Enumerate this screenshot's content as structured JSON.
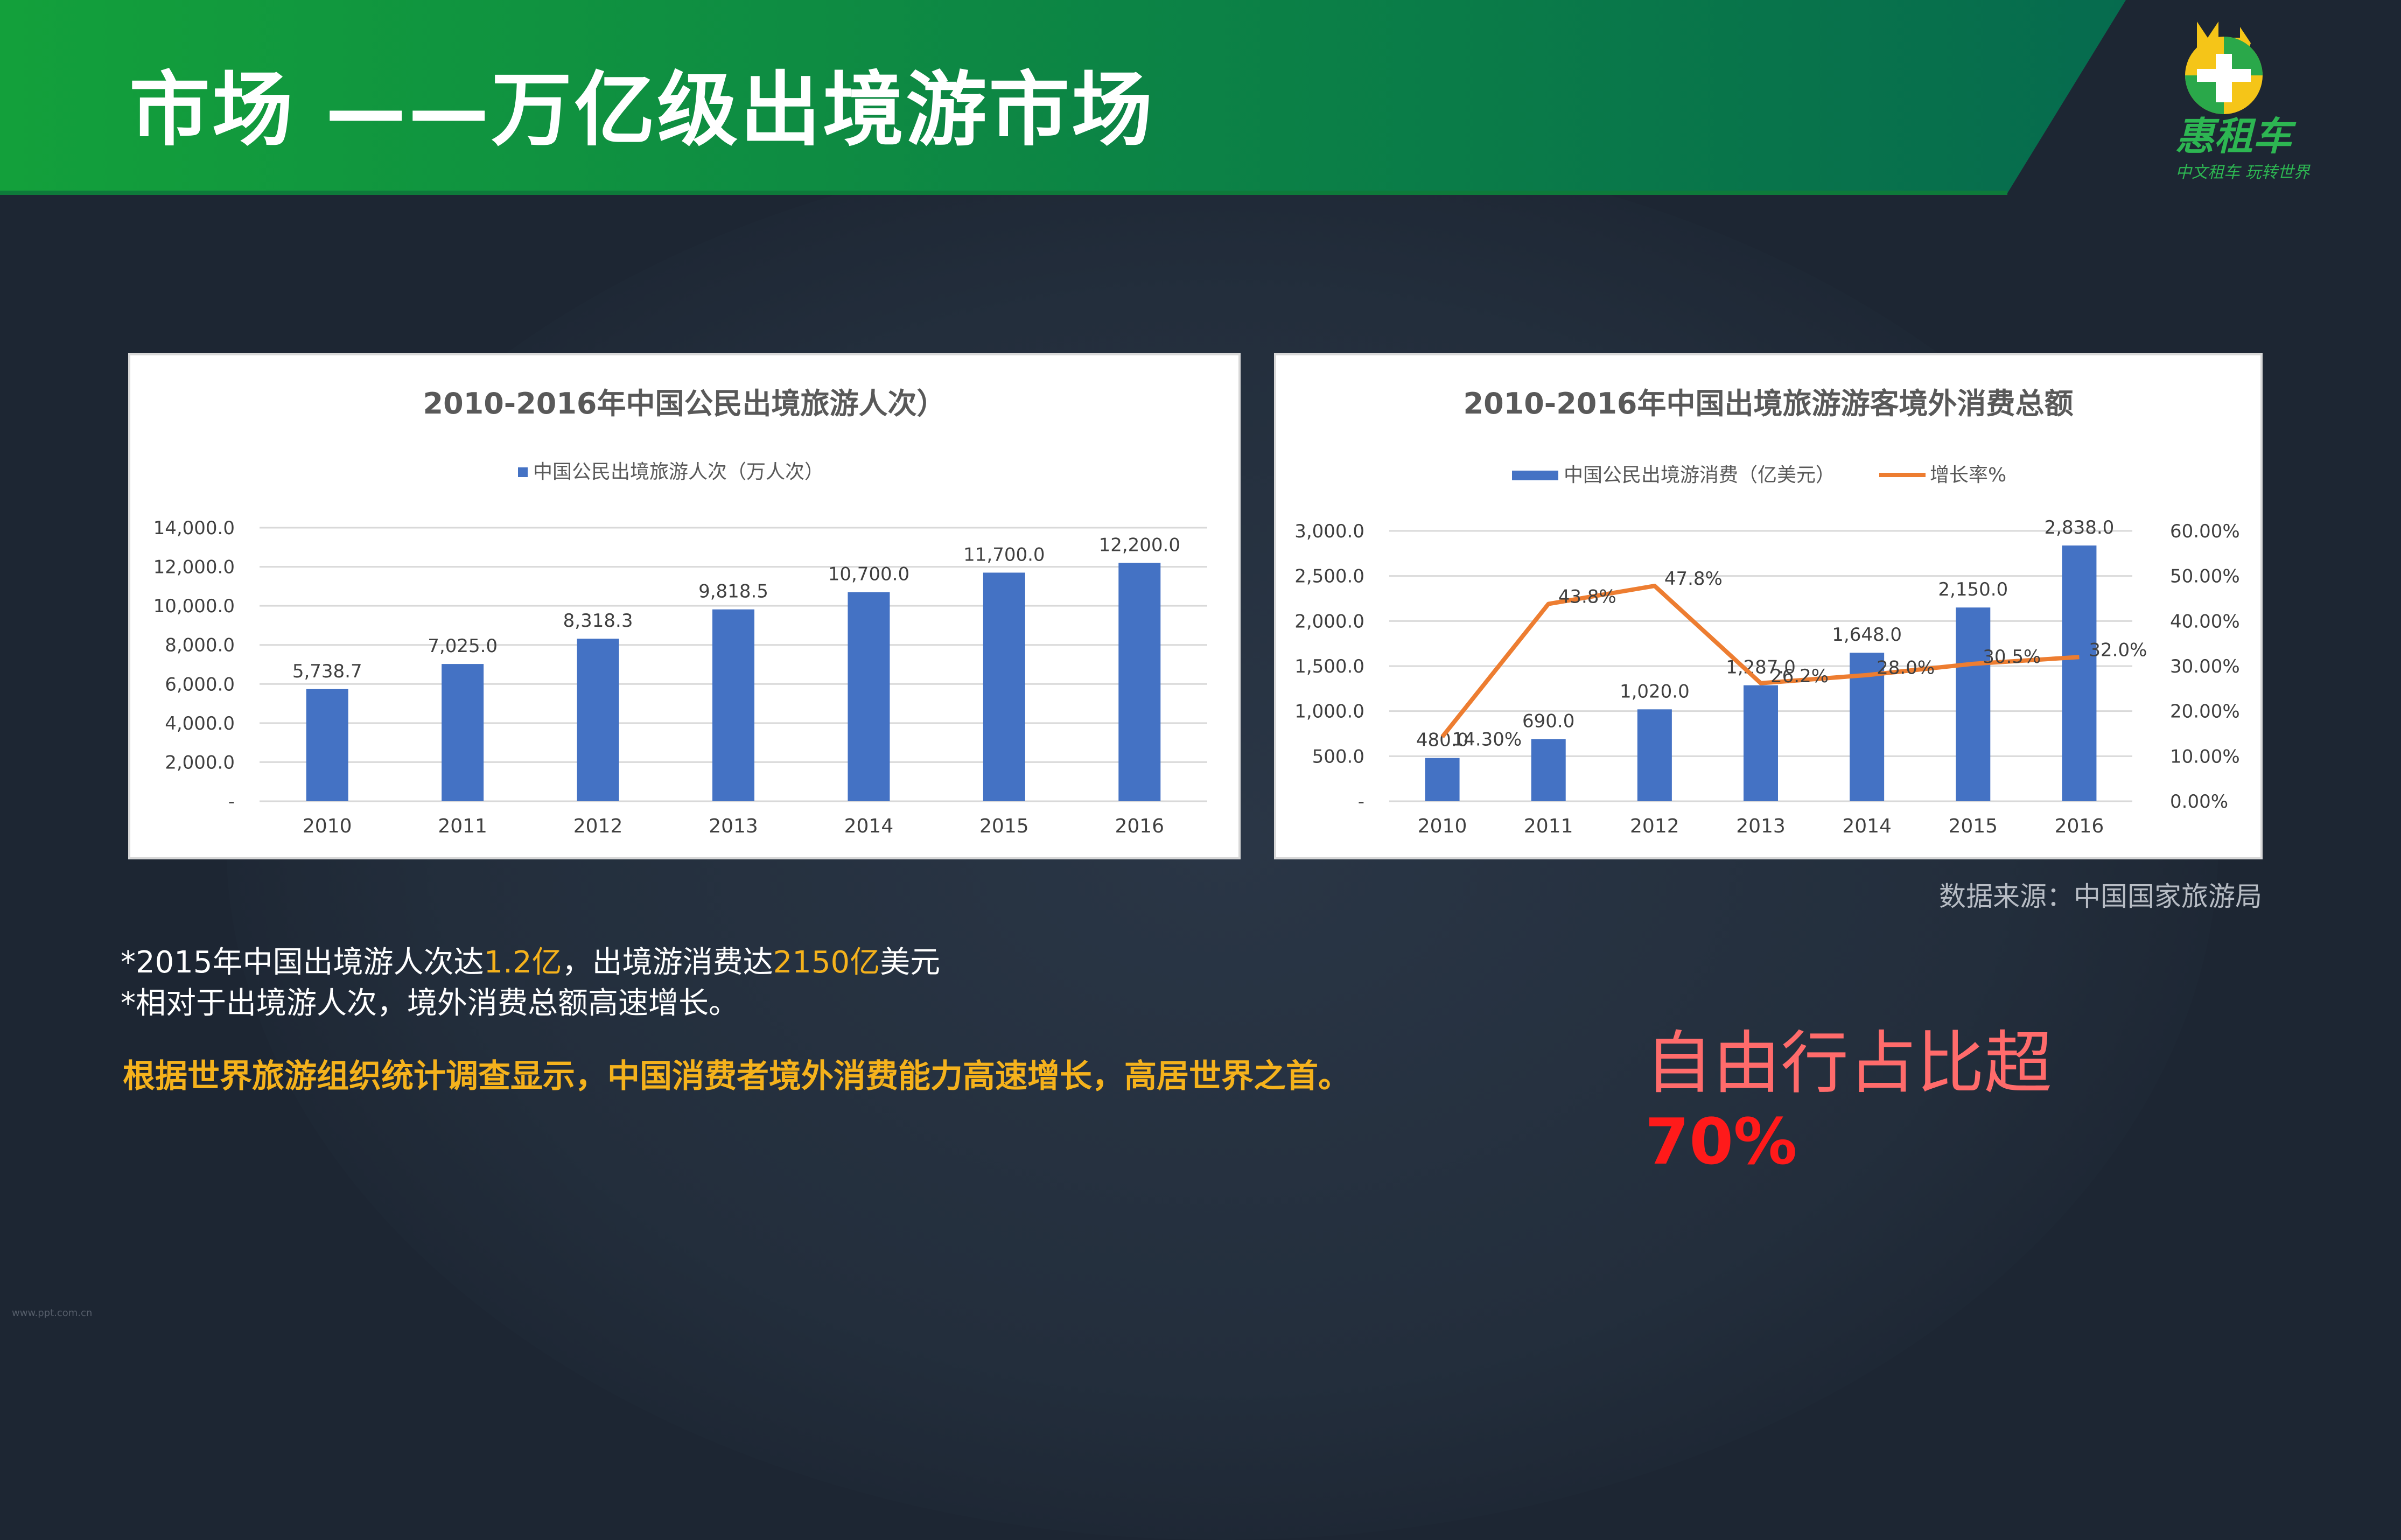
{
  "header": {
    "title": "市场 ——万亿级出境游市场",
    "brand_name": "惠租车",
    "brand_slogan": "中文租车 玩转世界"
  },
  "colors": {
    "header_green_start": "#13a03b",
    "header_green_end": "#066b4e",
    "background": "#1d2633",
    "highlight": "#f5b21c",
    "callout_red": "#ff1a1a",
    "bar_blue": "#4472c4",
    "line_orange": "#ed7d31"
  },
  "chart_data": [
    {
      "type": "bar",
      "title": "2010-2016年中国公民出境旅游人次）",
      "categories": [
        "2010",
        "2011",
        "2012",
        "2013",
        "2014",
        "2015",
        "2016"
      ],
      "series": [
        {
          "name": "中国公民出境旅游人次（万人次）",
          "values": [
            5738.7,
            7025.0,
            8318.3,
            9818.5,
            10700.0,
            11700.0,
            12200.0
          ],
          "labels": [
            "5,738.7",
            "7,025.0",
            "8,318.3",
            "9,818.5",
            "10,700.0",
            "11,700.0",
            "12,200.0"
          ]
        }
      ],
      "y_ticks": [
        "-",
        "2,000.0",
        "4,000.0",
        "6,000.0",
        "8,000.0",
        "10,000.0",
        "12,000.0",
        "14,000.0"
      ],
      "ylim": [
        0,
        14000
      ],
      "grid": true,
      "legend": "top"
    },
    {
      "type": "bar",
      "title": "2010-2016年中国出境旅游游客境外消费总额",
      "categories": [
        "2010",
        "2011",
        "2012",
        "2013",
        "2014",
        "2015",
        "2016"
      ],
      "series": [
        {
          "name": "中国公民出境游消费（亿美元）",
          "type": "bar",
          "axis": "left",
          "values": [
            480.0,
            690.0,
            1020.0,
            1287.0,
            1648.0,
            2150.0,
            2838.0
          ],
          "labels": [
            "480.0",
            "690.0",
            "1,020.0",
            "1,287.0",
            "1,648.0",
            "2,150.0",
            "2,838.0"
          ]
        },
        {
          "name": "增长率%",
          "type": "line",
          "axis": "right",
          "values": [
            14.3,
            43.8,
            47.8,
            26.2,
            28.0,
            30.5,
            32.0
          ],
          "labels": [
            "14.30%",
            "43.8%",
            "47.8%",
            "26.2%",
            "28.0%",
            "30.5%",
            "32.0%"
          ]
        }
      ],
      "y_ticks": [
        "-",
        "500.0",
        "1,000.0",
        "1,500.0",
        "2,000.0",
        "2,500.0",
        "3,000.0"
      ],
      "y2_ticks": [
        "0.00%",
        "10.00%",
        "20.00%",
        "30.00%",
        "40.00%",
        "50.00%",
        "60.00%"
      ],
      "ylim": [
        0,
        3000
      ],
      "y2lim": [
        0,
        60
      ],
      "grid": true,
      "legend": "top"
    }
  ],
  "source": "数据来源：中国国家旅游局",
  "notes": {
    "line1_a": "*2015年中国出境游人次达",
    "line1_b": "1.2亿",
    "line1_c": "，出境游消费达",
    "line1_d": "2150亿",
    "line1_e": "美元",
    "line2": "*相对于出境游人次，境外消费总额高速增长。"
  },
  "conclusion": "根据世界旅游组织统计调查显示，中国消费者境外消费能力高速增长，高居世界之首。",
  "callout": {
    "text": "自由行占比超",
    "value": "70%"
  },
  "watermark": "www.ppt.com.cn"
}
